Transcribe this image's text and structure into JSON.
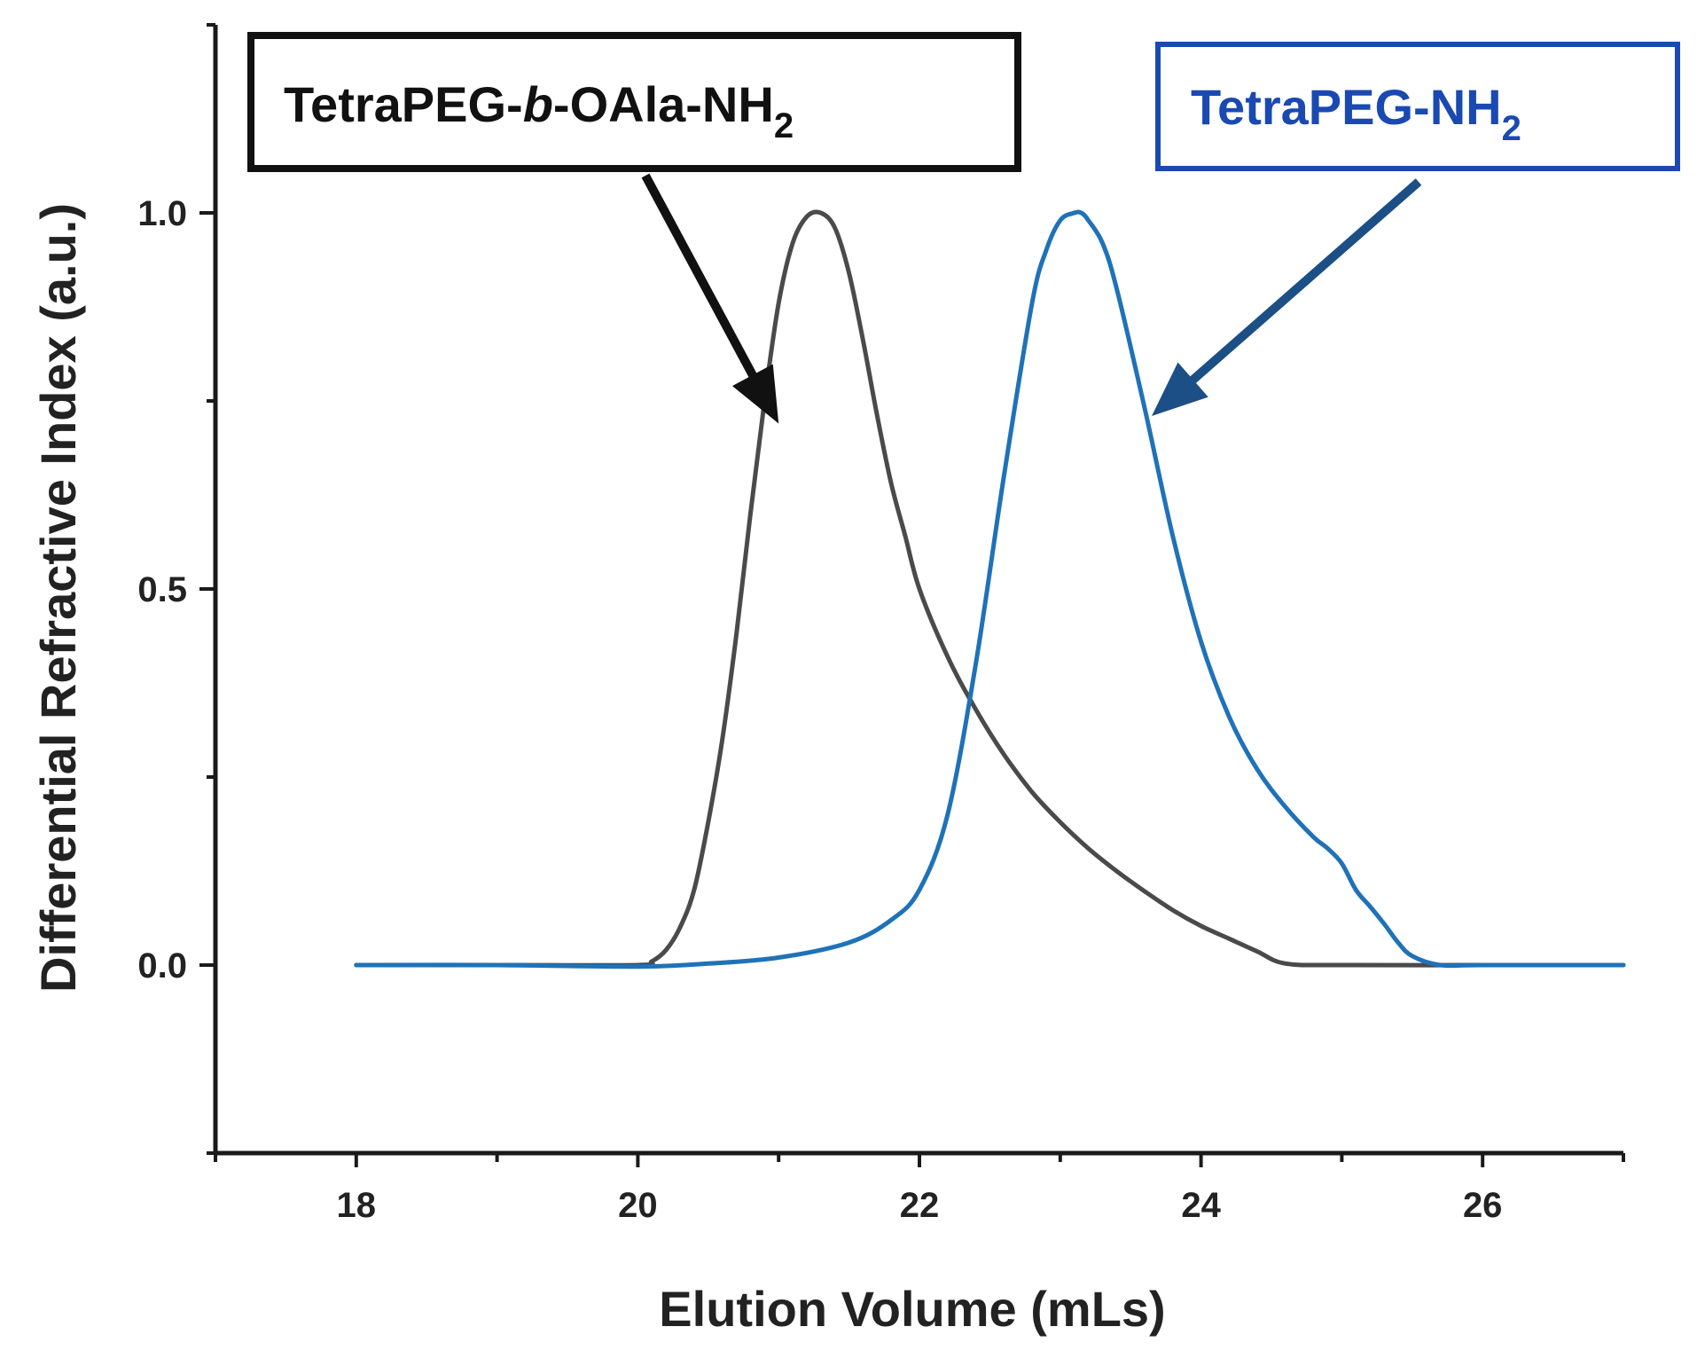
{
  "colors": {
    "axis": "#1a1a1a",
    "series_gray": "#4a4a4a",
    "series_blue": "#1f72b8",
    "callout_black": "#111111",
    "callout_blue": "#1a49b2",
    "arrow_blue": "#1b4f86"
  },
  "chart_data": {
    "type": "line",
    "title": "",
    "xlabel": "Elution Volume (mLs)",
    "ylabel": "Differential Refractive Index (a.u.)",
    "xlim": [
      17,
      27
    ],
    "ylim": [
      -0.25,
      1.25
    ],
    "x_ticks": [
      "18",
      "20",
      "22",
      "24",
      "26"
    ],
    "y_ticks": [
      "0.0",
      "0.5",
      "1.0"
    ],
    "x_tick_values": [
      18,
      20,
      22,
      24,
      26
    ],
    "y_tick_values": [
      0.0,
      0.5,
      1.0
    ],
    "grid": false,
    "series": [
      {
        "name": "TetraPEG-b-OAla-NH2",
        "color": "#4a4a4a",
        "x": [
          18.0,
          19.0,
          20.0,
          20.1,
          20.2,
          20.3,
          20.4,
          20.5,
          20.6,
          20.7,
          20.8,
          20.9,
          21.0,
          21.1,
          21.2,
          21.3,
          21.4,
          21.5,
          21.6,
          21.7,
          21.8,
          21.9,
          22.0,
          22.2,
          22.4,
          22.6,
          22.8,
          23.0,
          23.2,
          23.4,
          23.6,
          23.8,
          24.0,
          24.2,
          24.4,
          24.6,
          25.0,
          26.0,
          27.0
        ],
        "y": [
          0.0,
          0.0,
          0.0,
          0.005,
          0.02,
          0.05,
          0.1,
          0.19,
          0.3,
          0.44,
          0.6,
          0.75,
          0.88,
          0.96,
          0.995,
          1.0,
          0.98,
          0.92,
          0.83,
          0.73,
          0.64,
          0.57,
          0.5,
          0.41,
          0.34,
          0.28,
          0.23,
          0.19,
          0.155,
          0.125,
          0.098,
          0.073,
          0.052,
          0.035,
          0.018,
          0.002,
          0.0,
          0.0,
          0.0
        ]
      },
      {
        "name": "TetraPEG-NH2",
        "color": "#1f72b8",
        "x": [
          18.0,
          19.0,
          20.0,
          20.5,
          21.0,
          21.5,
          21.8,
          22.0,
          22.2,
          22.4,
          22.6,
          22.8,
          22.9,
          23.0,
          23.1,
          23.15,
          23.2,
          23.3,
          23.4,
          23.6,
          23.8,
          24.0,
          24.2,
          24.4,
          24.6,
          24.8,
          24.9,
          25.0,
          25.1,
          25.2,
          25.3,
          25.4,
          25.5,
          25.7,
          26.0,
          27.0
        ],
        "y": [
          0.0,
          0.0,
          -0.002,
          0.002,
          0.01,
          0.03,
          0.06,
          0.1,
          0.2,
          0.4,
          0.65,
          0.88,
          0.95,
          0.99,
          1.0,
          1.0,
          0.99,
          0.96,
          0.9,
          0.74,
          0.57,
          0.43,
          0.33,
          0.26,
          0.21,
          0.17,
          0.155,
          0.135,
          0.1,
          0.078,
          0.055,
          0.03,
          0.012,
          0.0,
          0.0,
          0.0
        ]
      }
    ],
    "annotations": [
      {
        "parts": [
          {
            "text": "TetraPEG-",
            "style": "normal"
          },
          {
            "text": "b",
            "style": "italic"
          },
          {
            "text": "-OAla-NH",
            "style": "normal"
          },
          {
            "text": "2",
            "style": "sub"
          }
        ],
        "target": {
          "x": 21.0,
          "y": 0.72
        },
        "color": "#111111",
        "arrow_color": "#111111"
      },
      {
        "parts": [
          {
            "text": "TetraPEG-NH",
            "style": "normal"
          },
          {
            "text": "2",
            "style": "sub"
          }
        ],
        "target": {
          "x": 23.65,
          "y": 0.73
        },
        "color": "#1a49b2",
        "arrow_color": "#1b4f86"
      }
    ]
  }
}
